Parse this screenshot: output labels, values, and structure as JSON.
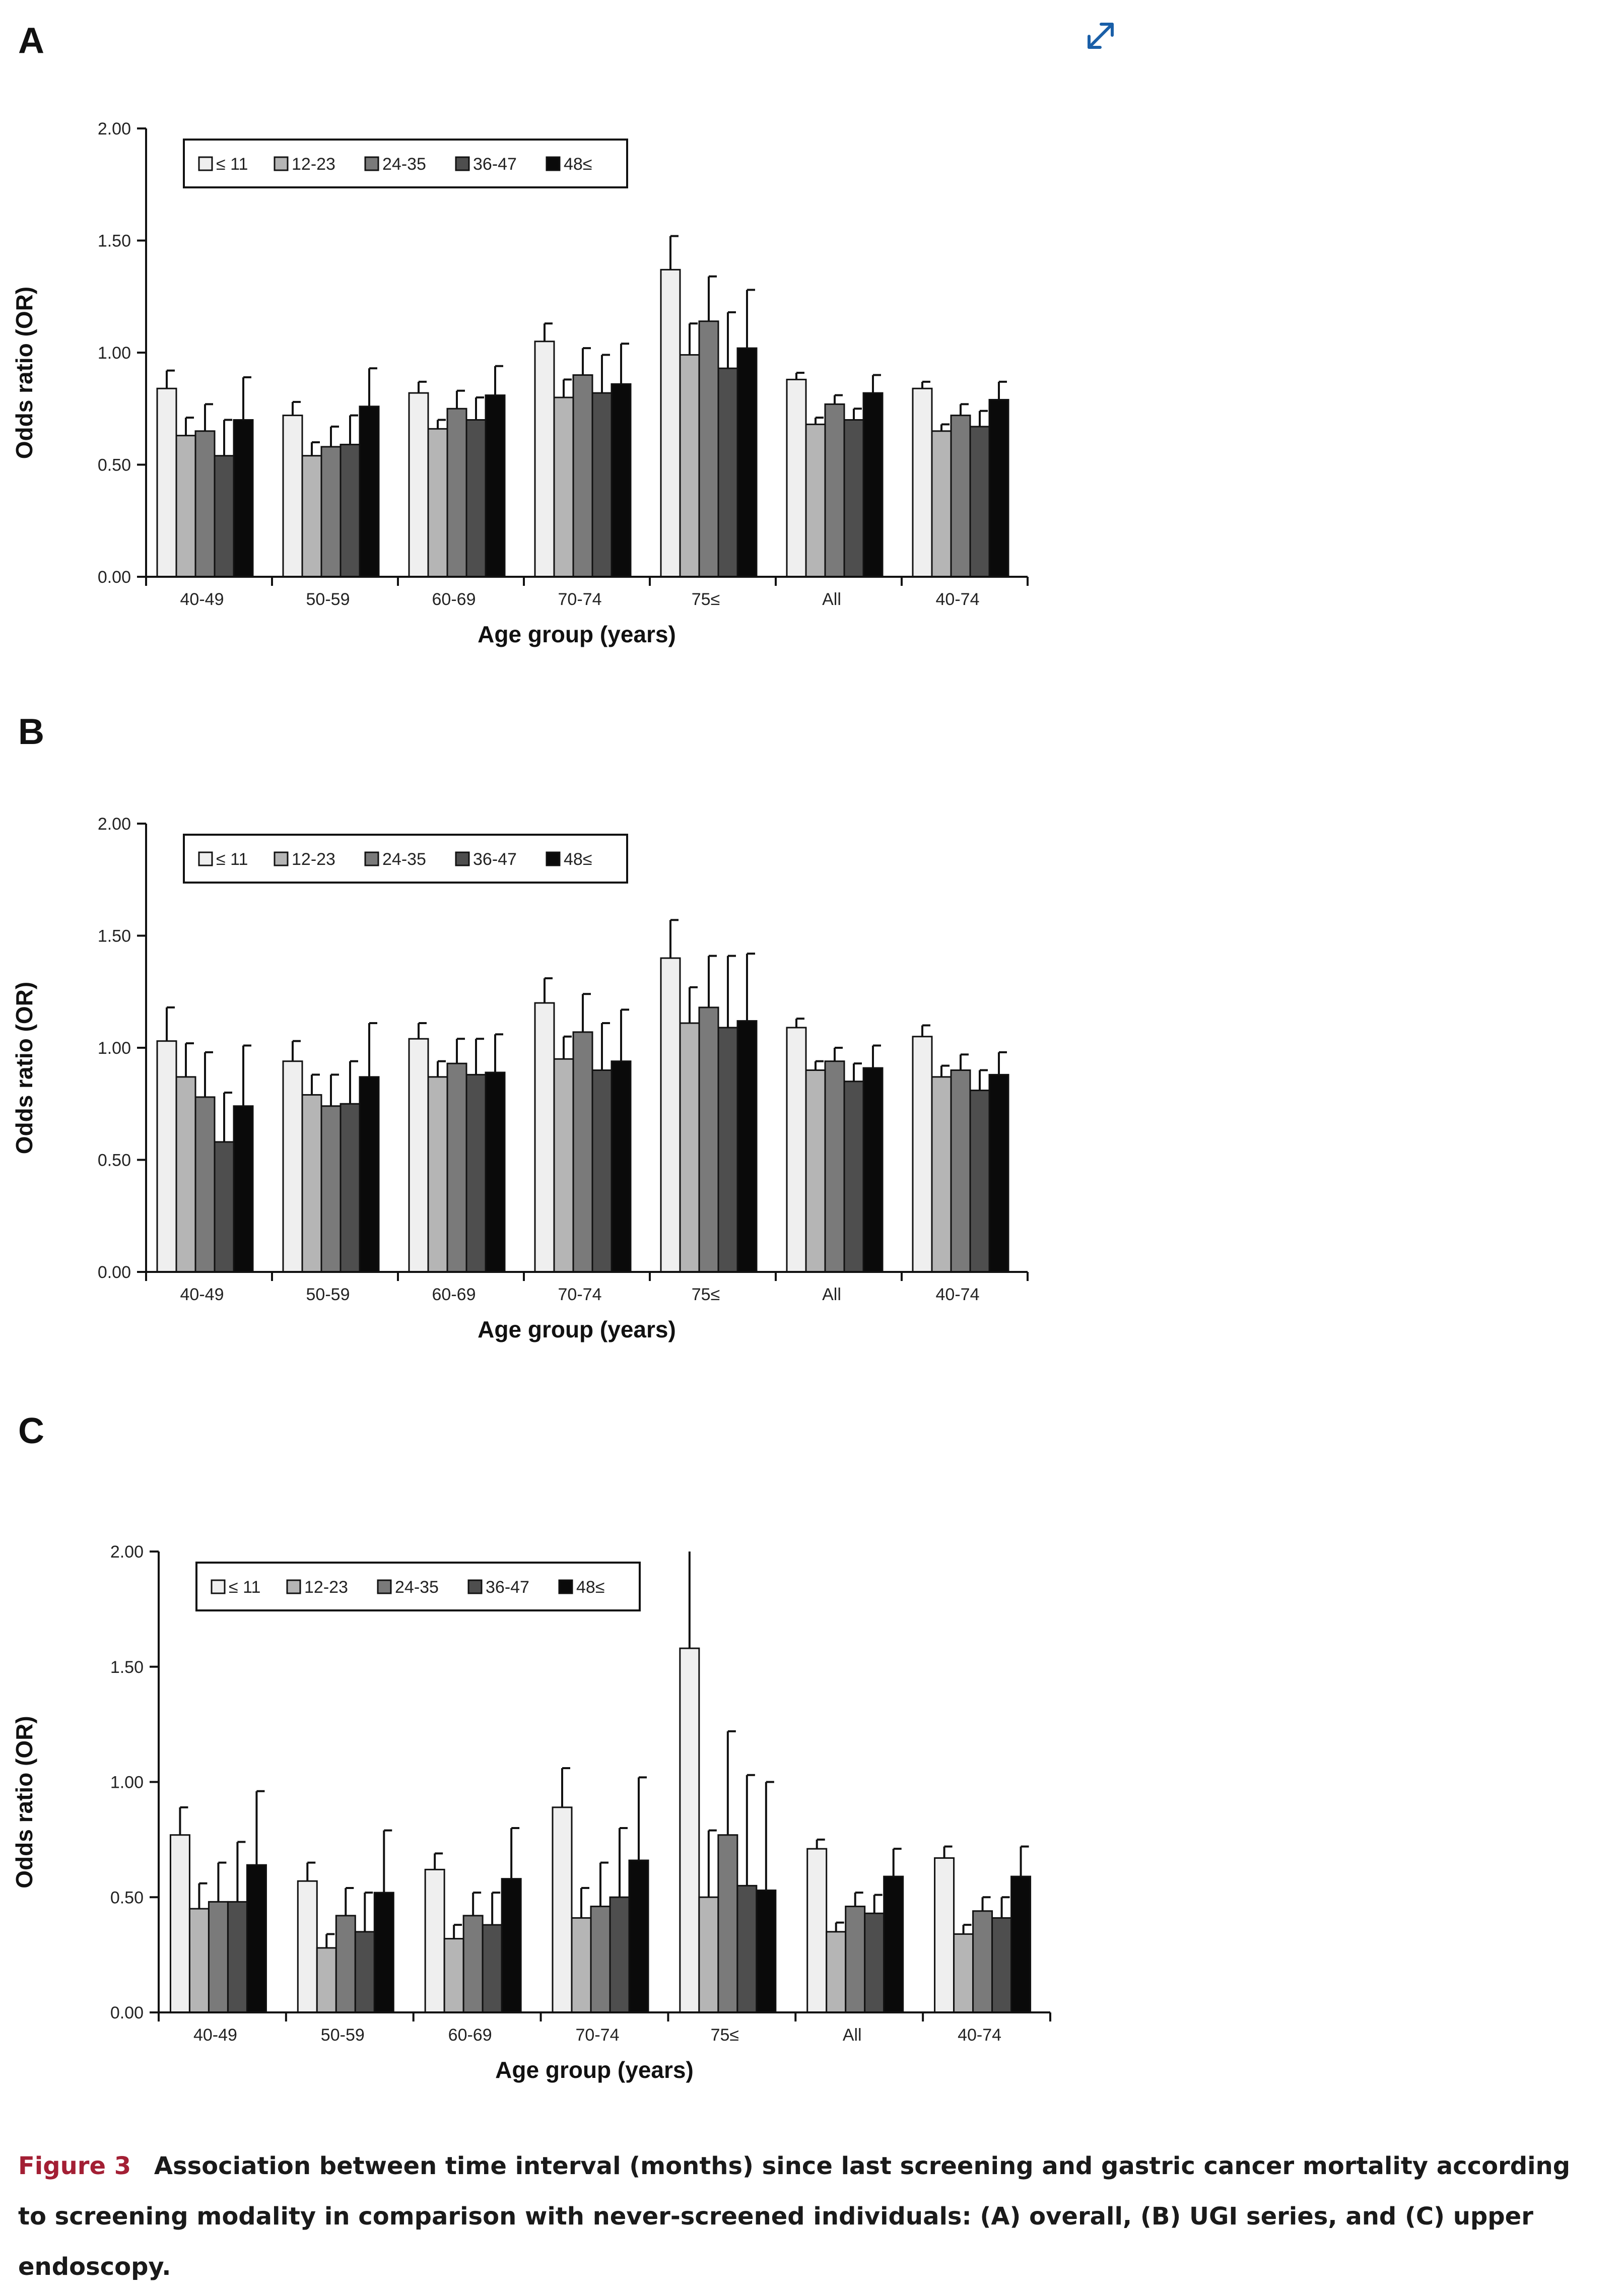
{
  "panels": [
    {
      "letter": "A"
    },
    {
      "letter": "B"
    },
    {
      "letter": "C"
    }
  ],
  "expand_icon": "expand-arrows-icon",
  "caption": {
    "label": "Figure 3",
    "text": "Association between time interval (months) since last screening and gastric cancer mortality according to screening modality in comparison with never-screened individuals: (A) overall, (B) UGI series, and (C) upper endoscopy."
  },
  "chart_data": [
    {
      "type": "bar",
      "title": "",
      "xlabel": "Age group (years)",
      "ylabel": "Odds ratio (OR)",
      "ylim": [
        0,
        2
      ],
      "yticks": [
        "0.00",
        "0.50",
        "1.00",
        "1.50",
        "2.00"
      ],
      "categories": [
        "40-49",
        "50-59",
        "60-69",
        "70-74",
        "75≤",
        "All",
        "40-74"
      ],
      "legend_position": "top-left",
      "series": [
        {
          "name": "≤ 11",
          "color": "#efefef",
          "values": [
            0.84,
            0.72,
            0.82,
            1.05,
            1.37,
            0.88,
            0.84
          ],
          "upper": [
            0.92,
            0.78,
            0.87,
            1.13,
            1.52,
            0.91,
            0.87
          ]
        },
        {
          "name": "12-23",
          "color": "#b5b5b5",
          "values": [
            0.63,
            0.54,
            0.66,
            0.8,
            0.99,
            0.68,
            0.65
          ],
          "upper": [
            0.71,
            0.6,
            0.7,
            0.88,
            1.13,
            0.71,
            0.68
          ]
        },
        {
          "name": "24-35",
          "color": "#7a7a7a",
          "values": [
            0.65,
            0.58,
            0.75,
            0.9,
            1.14,
            0.77,
            0.72
          ],
          "upper": [
            0.77,
            0.67,
            0.83,
            1.02,
            1.34,
            0.81,
            0.77
          ]
        },
        {
          "name": "36-47",
          "color": "#4e4e4e",
          "values": [
            0.54,
            0.59,
            0.7,
            0.82,
            0.93,
            0.7,
            0.67
          ],
          "upper": [
            0.7,
            0.72,
            0.8,
            0.99,
            1.18,
            0.75,
            0.74
          ]
        },
        {
          "name": "48≤",
          "color": "#0a0a0a",
          "values": [
            0.7,
            0.76,
            0.81,
            0.86,
            1.02,
            0.82,
            0.79
          ],
          "upper": [
            0.89,
            0.93,
            0.94,
            1.04,
            1.28,
            0.9,
            0.87
          ]
        }
      ]
    },
    {
      "type": "bar",
      "title": "",
      "xlabel": "Age group (years)",
      "ylabel": "Odds ratio (OR)",
      "ylim": [
        0,
        2
      ],
      "yticks": [
        "0.00",
        "0.50",
        "1.00",
        "1.50",
        "2.00"
      ],
      "categories": [
        "40-49",
        "50-59",
        "60-69",
        "70-74",
        "75≤",
        "All",
        "40-74"
      ],
      "legend_position": "top-left",
      "series": [
        {
          "name": "≤ 11",
          "color": "#efefef",
          "values": [
            1.03,
            0.94,
            1.04,
            1.2,
            1.4,
            1.09,
            1.05
          ],
          "upper": [
            1.18,
            1.03,
            1.11,
            1.31,
            1.57,
            1.13,
            1.1
          ]
        },
        {
          "name": "12-23",
          "color": "#b5b5b5",
          "values": [
            0.87,
            0.79,
            0.87,
            0.95,
            1.11,
            0.9,
            0.87
          ],
          "upper": [
            1.02,
            0.88,
            0.94,
            1.05,
            1.27,
            0.94,
            0.92
          ]
        },
        {
          "name": "24-35",
          "color": "#7a7a7a",
          "values": [
            0.78,
            0.74,
            0.93,
            1.07,
            1.18,
            0.94,
            0.9
          ],
          "upper": [
            0.98,
            0.88,
            1.04,
            1.24,
            1.41,
            1.0,
            0.97
          ]
        },
        {
          "name": "36-47",
          "color": "#4e4e4e",
          "values": [
            0.58,
            0.75,
            0.88,
            0.9,
            1.09,
            0.85,
            0.81
          ],
          "upper": [
            0.8,
            0.94,
            1.04,
            1.11,
            1.41,
            0.93,
            0.9
          ]
        },
        {
          "name": "48≤",
          "color": "#0a0a0a",
          "values": [
            0.74,
            0.87,
            0.89,
            0.94,
            1.12,
            0.91,
            0.88
          ],
          "upper": [
            1.01,
            1.11,
            1.06,
            1.17,
            1.42,
            1.01,
            0.98
          ]
        }
      ]
    },
    {
      "type": "bar",
      "title": "",
      "xlabel": "Age group (years)",
      "ylabel": "Odds ratio (OR)",
      "ylim": [
        0,
        2
      ],
      "yticks": [
        "0.00",
        "0.50",
        "1.00",
        "1.50",
        "2.00"
      ],
      "categories": [
        "40-49",
        "50-59",
        "60-69",
        "70-74",
        "75≤",
        "All",
        "40-74"
      ],
      "legend_position": "top-left",
      "series": [
        {
          "name": "≤ 11",
          "color": "#efefef",
          "values": [
            0.77,
            0.57,
            0.62,
            0.89,
            1.58,
            0.71,
            0.67
          ],
          "upper": [
            0.89,
            0.65,
            0.69,
            1.06,
            2.0,
            0.75,
            0.72
          ]
        },
        {
          "name": "12-23",
          "color": "#b5b5b5",
          "values": [
            0.45,
            0.28,
            0.32,
            0.41,
            0.5,
            0.35,
            0.34
          ],
          "upper": [
            0.56,
            0.34,
            0.38,
            0.54,
            0.79,
            0.39,
            0.38
          ]
        },
        {
          "name": "24-35",
          "color": "#7a7a7a",
          "values": [
            0.48,
            0.42,
            0.42,
            0.46,
            0.77,
            0.46,
            0.44
          ],
          "upper": [
            0.65,
            0.54,
            0.52,
            0.65,
            1.22,
            0.52,
            0.5
          ]
        },
        {
          "name": "36-47",
          "color": "#4e4e4e",
          "values": [
            0.48,
            0.35,
            0.38,
            0.5,
            0.55,
            0.43,
            0.41
          ],
          "upper": [
            0.74,
            0.52,
            0.52,
            0.8,
            1.03,
            0.51,
            0.5
          ]
        },
        {
          "name": "48≤",
          "color": "#0a0a0a",
          "values": [
            0.64,
            0.52,
            0.58,
            0.66,
            0.53,
            0.59,
            0.59
          ],
          "upper": [
            0.96,
            0.79,
            0.8,
            1.02,
            1.0,
            0.71,
            0.72
          ]
        }
      ]
    }
  ]
}
